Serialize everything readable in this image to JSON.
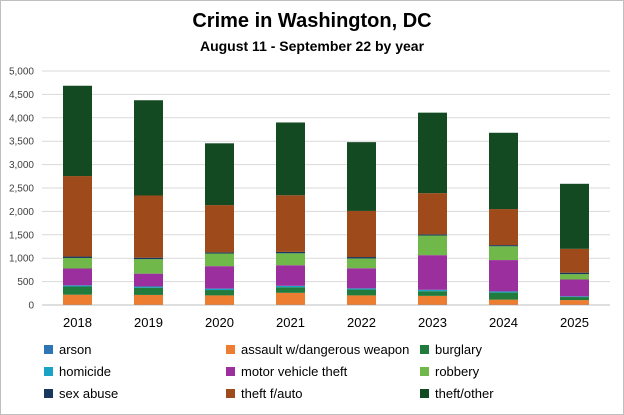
{
  "chart_data": {
    "type": "bar",
    "stacked": true,
    "title": "Crime in Washington, DC",
    "subtitle": "August 11 - September 22 by year",
    "categories": [
      "2018",
      "2019",
      "2020",
      "2021",
      "2022",
      "2023",
      "2024",
      "2025"
    ],
    "ylim": [
      0,
      5000
    ],
    "yticks": [
      0,
      500,
      1000,
      1500,
      2000,
      2500,
      3000,
      3500,
      4000,
      4500,
      5000
    ],
    "ytick_labels": [
      "0",
      "500",
      "1,000",
      "1,500",
      "2,000",
      "2,500",
      "3,000",
      "3,500",
      "4,000",
      "4,500",
      "5,000"
    ],
    "grid": true,
    "legend_position": "bottom",
    "series": [
      {
        "name": "arson",
        "color": "#2e75b6",
        "values": [
          5,
          5,
          5,
          5,
          5,
          5,
          5,
          5
        ]
      },
      {
        "name": "assault w/dangerous weapon",
        "color": "#ed7d31",
        "values": [
          215,
          210,
          200,
          255,
          200,
          190,
          110,
          100
        ]
      },
      {
        "name": "burglary",
        "color": "#217b3c",
        "values": [
          175,
          155,
          115,
          120,
          125,
          100,
          150,
          65
        ]
      },
      {
        "name": "homicide",
        "color": "#1ba3c6",
        "values": [
          25,
          25,
          30,
          30,
          25,
          30,
          25,
          15
        ]
      },
      {
        "name": "motor vehicle theft",
        "color": "#9b2f9e",
        "values": [
          360,
          275,
          480,
          440,
          430,
          740,
          670,
          360
        ]
      },
      {
        "name": "robbery",
        "color": "#70b84a",
        "values": [
          225,
          310,
          270,
          255,
          210,
          420,
          295,
          115
        ]
      },
      {
        "name": "sex abuse",
        "color": "#17375e",
        "values": [
          30,
          30,
          25,
          30,
          30,
          25,
          25,
          30
        ]
      },
      {
        "name": "theft f/auto",
        "color": "#9e4a1a",
        "values": [
          1720,
          1330,
          1010,
          1210,
          985,
          880,
          770,
          510
        ]
      },
      {
        "name": "theft/other",
        "color": "#144a22",
        "values": [
          1930,
          2035,
          1320,
          1555,
          1470,
          1720,
          1630,
          1390
        ]
      }
    ]
  }
}
